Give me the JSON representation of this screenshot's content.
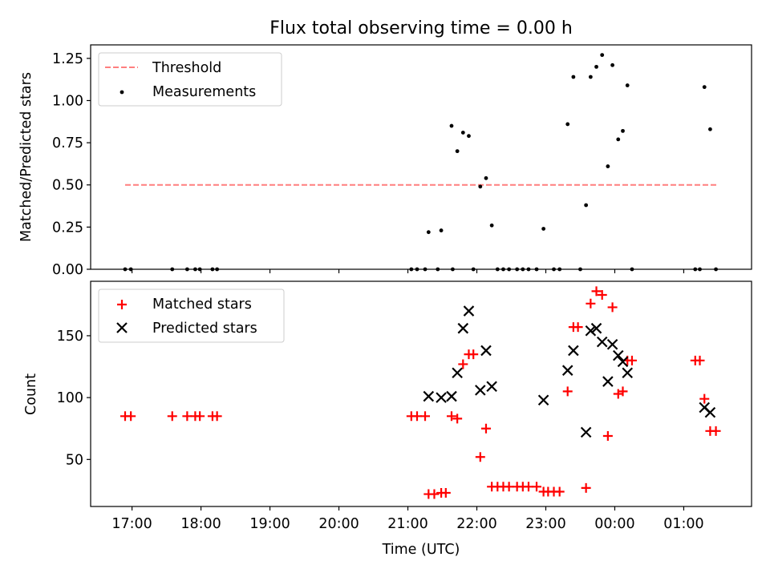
{
  "title": "Flux total observing time = 0.00 h",
  "chart_data": [
    {
      "type": "scatter",
      "ylabel": "Matched/Predicted stars",
      "xlabel": "",
      "ylim": [
        0,
        1.33
      ],
      "x_range": [
        "16:24",
        "01:59"
      ],
      "yticks": [
        0.0,
        0.25,
        0.5,
        0.75,
        1.0,
        1.25
      ],
      "ytick_labels": [
        "0.00",
        "0.25",
        "0.50",
        "0.75",
        "1.00",
        "1.25"
      ],
      "legend_position": "top-left",
      "grid": false,
      "threshold": {
        "name": "Threshold",
        "value": 0.5,
        "x_start": "16:54",
        "x_end": "01:30",
        "color": "#ff7f7f",
        "style": "dashed"
      },
      "series": [
        {
          "name": "Measurements",
          "color": "#000000",
          "marker": "dot",
          "points": [
            {
              "x": "16:54",
              "y": 0.0
            },
            {
              "x": "16:59",
              "y": 0.0
            },
            {
              "x": "17:35",
              "y": 0.0
            },
            {
              "x": "17:48",
              "y": 0.0
            },
            {
              "x": "17:55",
              "y": 0.0
            },
            {
              "x": "17:59",
              "y": 0.0
            },
            {
              "x": "18:10",
              "y": 0.0
            },
            {
              "x": "18:14",
              "y": 0.0
            },
            {
              "x": "21:03",
              "y": 0.0
            },
            {
              "x": "21:08",
              "y": 0.0
            },
            {
              "x": "21:15",
              "y": 0.0
            },
            {
              "x": "21:26",
              "y": 0.0
            },
            {
              "x": "21:18",
              "y": 0.22
            },
            {
              "x": "21:29",
              "y": 0.23
            },
            {
              "x": "21:39",
              "y": 0.0
            },
            {
              "x": "21:38",
              "y": 0.85
            },
            {
              "x": "21:43",
              "y": 0.7
            },
            {
              "x": "21:48",
              "y": 0.81
            },
            {
              "x": "21:53",
              "y": 0.79
            },
            {
              "x": "21:57",
              "y": 0.0
            },
            {
              "x": "22:03",
              "y": 0.49
            },
            {
              "x": "22:08",
              "y": 0.54
            },
            {
              "x": "22:13",
              "y": 0.26
            },
            {
              "x": "22:18",
              "y": 0.0
            },
            {
              "x": "22:23",
              "y": 0.0
            },
            {
              "x": "22:28",
              "y": 0.0
            },
            {
              "x": "22:35",
              "y": 0.0
            },
            {
              "x": "22:40",
              "y": 0.0
            },
            {
              "x": "22:45",
              "y": 0.0
            },
            {
              "x": "22:52",
              "y": 0.0
            },
            {
              "x": "22:58",
              "y": 0.24
            },
            {
              "x": "23:07",
              "y": 0.0
            },
            {
              "x": "23:12",
              "y": 0.0
            },
            {
              "x": "23:19",
              "y": 0.86
            },
            {
              "x": "23:24",
              "y": 1.14
            },
            {
              "x": "23:30",
              "y": 0.0
            },
            {
              "x": "23:35",
              "y": 0.38
            },
            {
              "x": "23:39",
              "y": 1.14
            },
            {
              "x": "23:44",
              "y": 1.2
            },
            {
              "x": "23:49",
              "y": 1.27
            },
            {
              "x": "23:54",
              "y": 0.61
            },
            {
              "x": "23:58",
              "y": 1.21
            },
            {
              "x": "00:03",
              "y": 0.77
            },
            {
              "x": "00:07",
              "y": 0.82
            },
            {
              "x": "00:11",
              "y": 1.09
            },
            {
              "x": "00:15",
              "y": 0.0
            },
            {
              "x": "01:10",
              "y": 0.0
            },
            {
              "x": "01:14",
              "y": 0.0
            },
            {
              "x": "01:18",
              "y": 1.08
            },
            {
              "x": "01:23",
              "y": 0.83
            },
            {
              "x": "01:28",
              "y": 0.0
            }
          ]
        }
      ]
    },
    {
      "type": "scatter",
      "ylabel": "Count",
      "xlabel": "Time (UTC)",
      "ylim": [
        12,
        194
      ],
      "x_range": [
        "16:24",
        "01:59"
      ],
      "yticks": [
        50,
        100,
        150
      ],
      "ytick_labels": [
        "50",
        "100",
        "150"
      ],
      "xtick_labels": [
        "17:00",
        "18:00",
        "19:00",
        "20:00",
        "21:00",
        "22:00",
        "23:00",
        "00:00",
        "01:00"
      ],
      "legend_position": "top-left",
      "grid": false,
      "series": [
        {
          "name": "Matched stars",
          "color": "#ff0000",
          "marker": "plus",
          "points": [
            {
              "x": "16:54",
              "y": 85
            },
            {
              "x": "16:59",
              "y": 85
            },
            {
              "x": "17:35",
              "y": 85
            },
            {
              "x": "17:48",
              "y": 85
            },
            {
              "x": "17:55",
              "y": 85
            },
            {
              "x": "17:59",
              "y": 85
            },
            {
              "x": "18:10",
              "y": 85
            },
            {
              "x": "18:14",
              "y": 85
            },
            {
              "x": "21:03",
              "y": 85
            },
            {
              "x": "21:08",
              "y": 85
            },
            {
              "x": "21:15",
              "y": 85
            },
            {
              "x": "21:18",
              "y": 22
            },
            {
              "x": "21:23",
              "y": 22
            },
            {
              "x": "21:29",
              "y": 23
            },
            {
              "x": "21:33",
              "y": 23
            },
            {
              "x": "21:38",
              "y": 85
            },
            {
              "x": "21:43",
              "y": 83
            },
            {
              "x": "21:48",
              "y": 127
            },
            {
              "x": "21:53",
              "y": 135
            },
            {
              "x": "21:57",
              "y": 135
            },
            {
              "x": "22:03",
              "y": 52
            },
            {
              "x": "22:08",
              "y": 75
            },
            {
              "x": "22:13",
              "y": 28
            },
            {
              "x": "22:18",
              "y": 28
            },
            {
              "x": "22:23",
              "y": 28
            },
            {
              "x": "22:28",
              "y": 28
            },
            {
              "x": "22:35",
              "y": 28
            },
            {
              "x": "22:40",
              "y": 28
            },
            {
              "x": "22:45",
              "y": 28
            },
            {
              "x": "22:52",
              "y": 28
            },
            {
              "x": "22:58",
              "y": 24
            },
            {
              "x": "23:02",
              "y": 24
            },
            {
              "x": "23:07",
              "y": 24
            },
            {
              "x": "23:12",
              "y": 24
            },
            {
              "x": "23:19",
              "y": 105
            },
            {
              "x": "23:24",
              "y": 157
            },
            {
              "x": "23:28",
              "y": 157
            },
            {
              "x": "23:35",
              "y": 27
            },
            {
              "x": "23:39",
              "y": 176
            },
            {
              "x": "23:44",
              "y": 186
            },
            {
              "x": "23:49",
              "y": 183
            },
            {
              "x": "23:54",
              "y": 69
            },
            {
              "x": "23:58",
              "y": 173
            },
            {
              "x": "00:03",
              "y": 103
            },
            {
              "x": "00:07",
              "y": 105
            },
            {
              "x": "00:11",
              "y": 130
            },
            {
              "x": "00:15",
              "y": 130
            },
            {
              "x": "01:10",
              "y": 130
            },
            {
              "x": "01:14",
              "y": 130
            },
            {
              "x": "01:18",
              "y": 99
            },
            {
              "x": "01:23",
              "y": 73
            },
            {
              "x": "01:28",
              "y": 73
            }
          ]
        },
        {
          "name": "Predicted stars",
          "color": "#000000",
          "marker": "x",
          "points": [
            {
              "x": "21:18",
              "y": 101
            },
            {
              "x": "21:29",
              "y": 100
            },
            {
              "x": "21:38",
              "y": 101
            },
            {
              "x": "21:43",
              "y": 120
            },
            {
              "x": "21:48",
              "y": 156
            },
            {
              "x": "21:53",
              "y": 170
            },
            {
              "x": "22:03",
              "y": 106
            },
            {
              "x": "22:08",
              "y": 138
            },
            {
              "x": "22:13",
              "y": 109
            },
            {
              "x": "22:58",
              "y": 98
            },
            {
              "x": "23:19",
              "y": 122
            },
            {
              "x": "23:24",
              "y": 138
            },
            {
              "x": "23:35",
              "y": 72
            },
            {
              "x": "23:39",
              "y": 154
            },
            {
              "x": "23:44",
              "y": 156
            },
            {
              "x": "23:49",
              "y": 145
            },
            {
              "x": "23:54",
              "y": 113
            },
            {
              "x": "23:58",
              "y": 143
            },
            {
              "x": "00:03",
              "y": 134
            },
            {
              "x": "00:07",
              "y": 129
            },
            {
              "x": "00:11",
              "y": 120
            },
            {
              "x": "01:18",
              "y": 92
            },
            {
              "x": "01:23",
              "y": 88
            }
          ]
        }
      ]
    }
  ]
}
